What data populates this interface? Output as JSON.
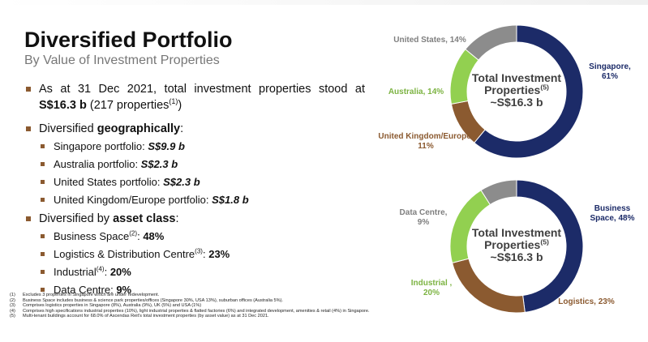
{
  "title": "Diversified Portfolio",
  "subtitle": "By Value of Investment Properties",
  "bullets": [
    {
      "level": 1,
      "segments": [
        {
          "text": "As at 31 Dec 2021, total investment properties stood at "
        },
        {
          "text": "S$16.3 b",
          "style": "bold"
        },
        {
          "text": " (217 properties"
        },
        {
          "text": "(1)",
          "style": "sup"
        },
        {
          "text": ")"
        }
      ]
    },
    {
      "level": 1,
      "segments": [
        {
          "text": "Diversified "
        },
        {
          "text": "geographically",
          "style": "bold"
        },
        {
          "text": ":"
        }
      ]
    },
    {
      "level": 2,
      "segments": [
        {
          "text": "Singapore portfolio: "
        },
        {
          "text": "S$9.9 b",
          "style": "bold-italic"
        }
      ]
    },
    {
      "level": 2,
      "segments": [
        {
          "text": "Australia portfolio: "
        },
        {
          "text": "S$2.3 b",
          "style": "bold-italic"
        }
      ]
    },
    {
      "level": 2,
      "segments": [
        {
          "text": "United States portfolio: "
        },
        {
          "text": "S$2.3 b",
          "style": "bold-italic"
        }
      ]
    },
    {
      "level": 2,
      "segments": [
        {
          "text": "United Kingdom/Europe portfolio: "
        },
        {
          "text": "S$1.8 b",
          "style": "bold-italic"
        }
      ]
    },
    {
      "level": 1,
      "segments": [
        {
          "text": "Diversified by "
        },
        {
          "text": "asset class",
          "style": "bold"
        },
        {
          "text": ":"
        }
      ]
    },
    {
      "level": 2,
      "segments": [
        {
          "text": "Business Space"
        },
        {
          "text": "(2)",
          "style": "sup"
        },
        {
          "text": ": "
        },
        {
          "text": "48%",
          "style": "bold"
        }
      ]
    },
    {
      "level": 2,
      "segments": [
        {
          "text": "Logistics & Distribution Centre"
        },
        {
          "text": "(3)",
          "style": "sup"
        },
        {
          "text": ": "
        },
        {
          "text": "23%",
          "style": "bold"
        }
      ]
    },
    {
      "level": 2,
      "segments": [
        {
          "text": "Industrial"
        },
        {
          "text": "(4)",
          "style": "sup"
        },
        {
          "text": ": "
        },
        {
          "text": "20%",
          "style": "bold"
        }
      ]
    },
    {
      "level": 2,
      "segments": [
        {
          "text": "Data Centre: "
        },
        {
          "text": "9%",
          "style": "bold"
        }
      ]
    }
  ],
  "footnotes": [
    {
      "number": "(1)",
      "text": "Excludes 3 properties in Singapore which are under redevelopment."
    },
    {
      "number": "(2)",
      "text": "Business Space includes business & science park properties/offices (Singapore 30%, USA 13%), suburban offices (Australia 5%)."
    },
    {
      "number": "(3)",
      "text": "Comprises logistics properties in Singapore (8%), Australia (9%), UK (5%) and USA (1%)"
    },
    {
      "number": "(4)",
      "text": "Comprises high specifications industrial properties (10%), light industrial properties & flatted factories (6%) and integrated development, amenities & retail (4%) in Singapore."
    },
    {
      "number": "(5)",
      "text": "Multi-tenant buildings account for 68.0% of Ascendas Reit's total investment properties (by asset value) as at 31 Dec 2021."
    }
  ],
  "chart_data": [
    {
      "type": "donut",
      "center_title": "Total Investment Properties",
      "center_sup": "(5)",
      "center_value": "~S$16.3 b",
      "values": [
        61,
        11,
        14,
        14
      ],
      "value_labels": [
        "Singapore, 61%",
        "United Kingdom/Europe, 11%",
        "Australia, 14%",
        "United States, 14%"
      ],
      "colors": [
        "#1c2b68",
        "#8b5a30",
        "#92d050",
        "#8c8c8c"
      ],
      "label_colors": [
        "#1c2b68",
        "#8b5a30",
        "#7cb342",
        "#7f7f7f"
      ]
    },
    {
      "type": "donut",
      "center_title": "Total Investment Properties",
      "center_sup": "(5)",
      "center_value": "~S$16.3 b",
      "values": [
        48,
        23,
        20,
        9
      ],
      "value_labels": [
        "Business Space, 48%",
        "Logistics, 23%",
        "Industrial , 20%",
        "Data Centre, 9%"
      ],
      "colors": [
        "#1c2b68",
        "#8b5a30",
        "#92d050",
        "#8c8c8c"
      ],
      "label_colors": [
        "#1c2b68",
        "#8b5a30",
        "#7cb342",
        "#7f7f7f"
      ]
    }
  ]
}
